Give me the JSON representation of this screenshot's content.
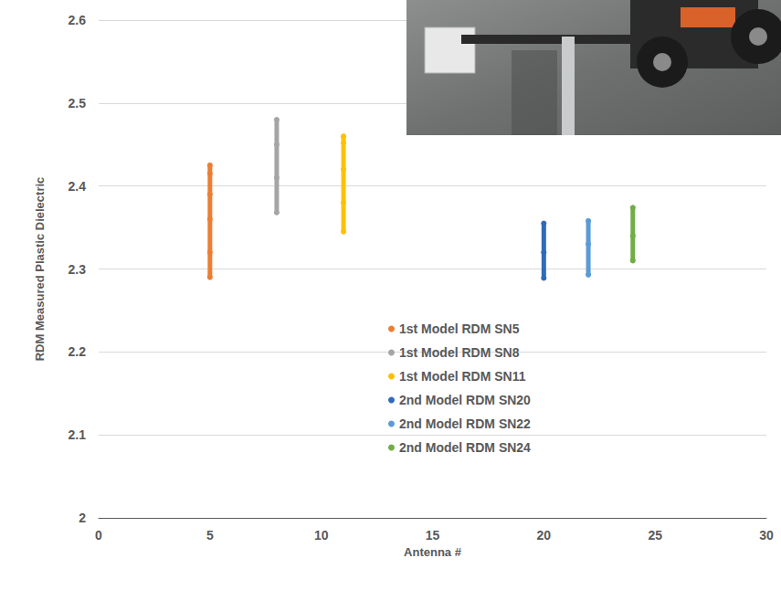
{
  "chart_data": {
    "type": "scatter",
    "x_label": "Antenna #",
    "y_label": "RDM Measured Plastic Dielectric",
    "xlim": [
      0,
      30
    ],
    "xticks": [
      0,
      5,
      10,
      15,
      20,
      25,
      30
    ],
    "ylim": [
      2,
      2.6
    ],
    "yticks": [
      2,
      2.1,
      2.2,
      2.3,
      2.4,
      2.5,
      2.6
    ],
    "grid": true,
    "legend": "center",
    "marker": "circle",
    "line_style": "solid",
    "series": [
      {
        "name": "1st Model RDM SN5",
        "color": "#ED7D31",
        "x": [
          5,
          5,
          5,
          5,
          5,
          5
        ],
        "values": [
          2.29,
          2.32,
          2.36,
          2.39,
          2.415,
          2.425
        ]
      },
      {
        "name": "1st Model RDM SN8",
        "color": "#A5A5A5",
        "x": [
          8,
          8,
          8,
          8
        ],
        "values": [
          2.368,
          2.41,
          2.45,
          2.48
        ]
      },
      {
        "name": "1st Model RDM SN11",
        "color": "#FFC000",
        "x": [
          11,
          11,
          11,
          11,
          11
        ],
        "values": [
          2.345,
          2.38,
          2.42,
          2.452,
          2.46
        ]
      },
      {
        "name": "2nd Model RDM SN20",
        "color": "#2F6BBA",
        "x": [
          20,
          20,
          20
        ],
        "values": [
          2.289,
          2.32,
          2.355
        ]
      },
      {
        "name": "2nd Model RDM SN22",
        "color": "#5B9BD5",
        "x": [
          22,
          22,
          22
        ],
        "values": [
          2.293,
          2.33,
          2.358
        ]
      },
      {
        "name": "2nd Model RDM SN24",
        "color": "#70AD47",
        "x": [
          24,
          24,
          24
        ],
        "values": [
          2.31,
          2.34,
          2.374
        ]
      }
    ]
  }
}
